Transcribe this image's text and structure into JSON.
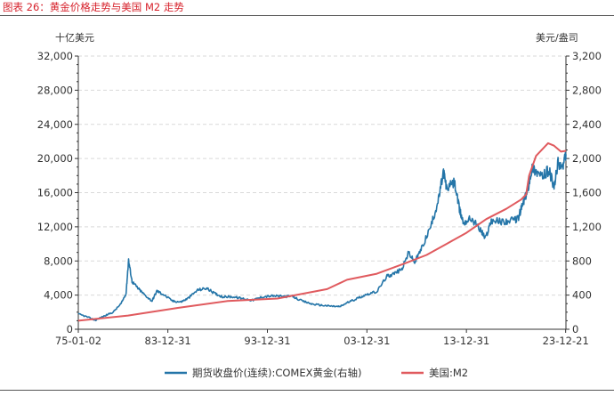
{
  "header": {
    "figure_title": "图表 26：黄金价格走势与美国 M2 走势"
  },
  "chart_data": {
    "type": "line",
    "left_unit": "十亿美元",
    "right_unit": "美元/盎司",
    "left_ylim": [
      0,
      32000
    ],
    "right_ylim": [
      0,
      3200
    ],
    "left_ticks": [
      "0",
      "4,000",
      "8,000",
      "12,000",
      "16,000",
      "20,000",
      "24,000",
      "28,000",
      "32,000"
    ],
    "right_ticks": [
      "0",
      "400",
      "800",
      "1,200",
      "1,600",
      "2,000",
      "2,400",
      "2,800",
      "3,200"
    ],
    "x_ticks": [
      "75-01-02",
      "83-12-31",
      "93-12-31",
      "03-12-31",
      "13-12-31",
      "23-12-21"
    ],
    "x_tick_years": [
      1975.0,
      1984.0,
      1994.0,
      2004.0,
      2014.0,
      2023.97
    ],
    "xlim": [
      1975.0,
      2024.0
    ],
    "grid": true,
    "legend_position": "bottom",
    "colors": {
      "gold": "#2475a8",
      "m2": "#e05a5e"
    },
    "series": [
      {
        "name": "期货收盘价(连续):COMEX黄金(右轴)",
        "axis": "right",
        "color": "#2475a8",
        "x": [
          1975.0,
          1976.0,
          1976.7,
          1977.5,
          1978.5,
          1979.3,
          1979.8,
          1980.05,
          1980.4,
          1981.0,
          1981.6,
          1982.4,
          1982.9,
          1983.5,
          1984.5,
          1985.3,
          1986.0,
          1987.0,
          1987.9,
          1988.7,
          1989.5,
          1990.5,
          1991.5,
          1992.5,
          1993.5,
          1994.5,
          1995.5,
          1996.5,
          1997.5,
          1998.5,
          1999.5,
          2000.5,
          2001.3,
          2002.0,
          2003.0,
          2004.0,
          2005.0,
          2006.0,
          2006.5,
          2007.5,
          2008.2,
          2008.8,
          2009.5,
          2010.5,
          2011.2,
          2011.7,
          2012.0,
          2012.8,
          2013.3,
          2013.7,
          2014.5,
          2015.5,
          2015.9,
          2016.5,
          2017.5,
          2018.5,
          2019.2,
          2019.7,
          2020.1,
          2020.6,
          2021.0,
          2021.6,
          2022.3,
          2022.8,
          2023.2,
          2023.7,
          2024.0
        ],
        "y": [
          180,
          140,
          105,
          150,
          200,
          300,
          420,
          810,
          560,
          480,
          410,
          330,
          450,
          410,
          330,
          320,
          360,
          460,
          480,
          420,
          380,
          380,
          360,
          340,
          380,
          390,
          385,
          385,
          330,
          295,
          280,
          270,
          265,
          310,
          360,
          410,
          440,
          620,
          640,
          700,
          900,
          780,
          950,
          1230,
          1520,
          1850,
          1650,
          1720,
          1400,
          1250,
          1300,
          1150,
          1060,
          1280,
          1260,
          1270,
          1300,
          1480,
          1600,
          1900,
          1850,
          1780,
          1870,
          1650,
          1950,
          1900,
          2050
        ]
      },
      {
        "name": "美国:M2",
        "axis": "left",
        "color": "#e05a5e",
        "x": [
          1975.0,
          1980.0,
          1985.0,
          1990.0,
          1995.0,
          2000.0,
          2002.0,
          2005.0,
          2008.0,
          2010.0,
          2012.0,
          2014.0,
          2016.0,
          2018.0,
          2019.5,
          2020.0,
          2020.3,
          2021.0,
          2022.2,
          2022.8,
          2023.5,
          2024.0
        ],
        "y": [
          1000,
          1600,
          2500,
          3300,
          3600,
          4700,
          5800,
          6500,
          7800,
          8700,
          10000,
          11300,
          12900,
          14100,
          15200,
          15800,
          18000,
          20300,
          21800,
          21500,
          20800,
          20900
        ]
      }
    ]
  }
}
